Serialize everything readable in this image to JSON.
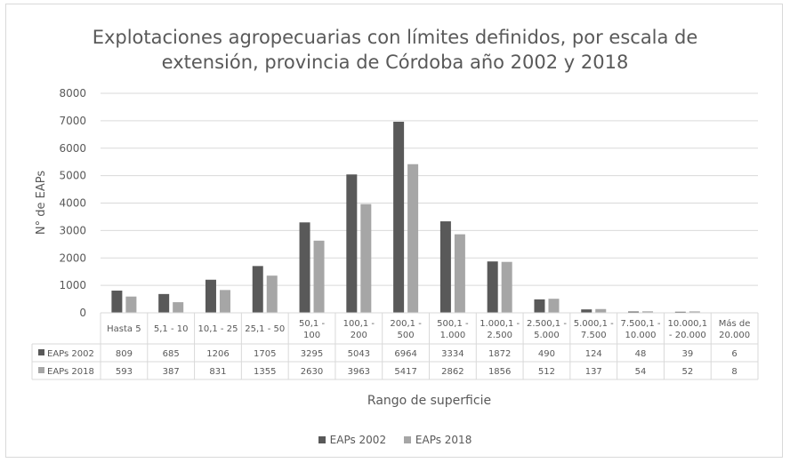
{
  "colors": {
    "s1": "#595959",
    "s2": "#a6a6a6",
    "grid": "#d9d9d9"
  },
  "chart_data": {
    "type": "bar",
    "title": "Explotaciones agropecuarias con límites definidos, por escala de extensión, provincia de Córdoba año 2002 y 2018",
    "title_lines": [
      "Explotaciones agropecuarias con límites definidos, por escala de",
      "extensión, provincia de Córdoba año 2002 y 2018"
    ],
    "xlabel": "Rango de superficie",
    "ylabel": "N° de EAPs",
    "ylim": [
      0,
      8000
    ],
    "yticks": [
      0,
      1000,
      2000,
      3000,
      4000,
      5000,
      6000,
      7000,
      8000
    ],
    "grid": true,
    "legend": "bottom",
    "categories": [
      [
        "Hasta 5"
      ],
      [
        "5,1 - 10"
      ],
      [
        "10,1 - 25"
      ],
      [
        "25,1 - 50"
      ],
      [
        "50,1 -",
        "100"
      ],
      [
        "100,1 -",
        "200"
      ],
      [
        "200,1 -",
        "500"
      ],
      [
        "500,1 -",
        "1.000"
      ],
      [
        "1.000,1 -",
        "2.500"
      ],
      [
        "2.500,1 -",
        "5.000"
      ],
      [
        "5.000,1 -",
        "7.500"
      ],
      [
        "7.500,1 -",
        "10.000"
      ],
      [
        "10.000,1",
        "- 20.000"
      ],
      [
        "Más de",
        "20.000"
      ]
    ],
    "series": [
      {
        "name": "EAPs 2002",
        "values": [
          809,
          685,
          1206,
          1705,
          3295,
          5043,
          6964,
          3334,
          1872,
          490,
          124,
          48,
          39,
          6
        ]
      },
      {
        "name": "EAPs 2018",
        "values": [
          593,
          387,
          831,
          1355,
          2630,
          3963,
          5417,
          2862,
          1856,
          512,
          137,
          54,
          52,
          8
        ]
      }
    ]
  }
}
